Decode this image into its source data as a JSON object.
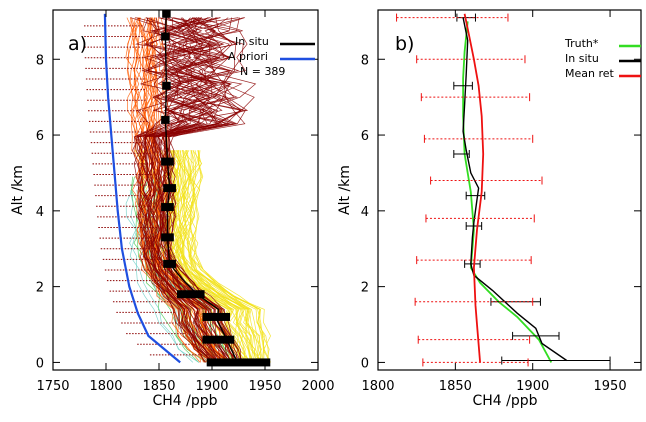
{
  "chart_data": [
    {
      "type": "line",
      "panel_label": "a)",
      "xlabel": "CH4 /ppb",
      "ylabel": "Alt /km",
      "xlim": [
        1750,
        2000
      ],
      "ylim": [
        -0.2,
        9.3
      ],
      "xticks": [
        1750,
        1800,
        1850,
        1900,
        1950,
        2000
      ],
      "yticks": [
        0,
        2,
        4,
        6,
        8
      ],
      "grid": false,
      "legend_position": "top-right",
      "legend": [
        {
          "name": "In situ",
          "color": "#000000"
        },
        {
          "name": "A priori",
          "color": "#1f4fe0"
        },
        {
          "name": "N = 389",
          "color": "none"
        }
      ],
      "colors": {
        "apriori": "#1f4fe0",
        "insitu": "#000000",
        "high": "#8b0000",
        "mid": "#ff5a00",
        "low": "#f2e21a",
        "green": "#48c850",
        "cyan": "#70d0c8"
      },
      "series": [
        {
          "name": "In situ",
          "points": [
            [
              1857,
              9.2
            ],
            [
              1856,
              8.6
            ],
            [
              1857,
              7.3
            ],
            [
              1856,
              6.4
            ],
            [
              1858,
              5.3
            ],
            [
              1860,
              4.6
            ],
            [
              1858,
              4.1
            ],
            [
              1858,
              3.3
            ],
            [
              1860,
              2.6
            ],
            [
              1872,
              2.2
            ],
            [
              1886,
              1.8
            ],
            [
              1906,
              1.4
            ],
            [
              1905,
              1.1
            ],
            [
              1914,
              0.6
            ],
            [
              1924,
              0
            ]
          ],
          "error_bars": [
            [
              1857,
              9.2,
              4
            ],
            [
              1856,
              8.6,
              4
            ],
            [
              1857,
              7.3,
              4
            ],
            [
              1856,
              6.4,
              4
            ],
            [
              1858,
              5.3,
              6
            ],
            [
              1860,
              4.6,
              6
            ],
            [
              1858,
              4.1,
              6
            ],
            [
              1858,
              3.3,
              6
            ],
            [
              1860,
              2.6,
              6
            ],
            [
              1880,
              1.8,
              13
            ],
            [
              1904,
              1.2,
              13
            ],
            [
              1906,
              0.6,
              15
            ],
            [
              1925,
              0,
              30
            ]
          ]
        },
        {
          "name": "A priori",
          "points": [
            [
              1799,
              9.2
            ],
            [
              1800,
              8.0
            ],
            [
              1802,
              7.0
            ],
            [
              1805,
              6.0
            ],
            [
              1808,
              5.0
            ],
            [
              1811,
              4.0
            ],
            [
              1815,
              3.0
            ],
            [
              1822,
              2.0
            ],
            [
              1830,
              1.3
            ],
            [
              1840,
              0.7
            ],
            [
              1870,
              0
            ]
          ]
        }
      ]
    },
    {
      "type": "line",
      "panel_label": "b)",
      "xlabel": "CH4 /ppb",
      "ylabel": "Alt /km",
      "xlim": [
        1800,
        1970
      ],
      "ylim": [
        -0.2,
        9.3
      ],
      "xticks": [
        1800,
        1850,
        1900,
        1950
      ],
      "yticks": [
        0,
        2,
        4,
        6,
        8
      ],
      "grid": false,
      "legend_position": "top-right",
      "legend": [
        {
          "name": "Truth*",
          "color": "#33dd22"
        },
        {
          "name": "In situ",
          "color": "#000000"
        },
        {
          "name": "Mean ret",
          "color": "#ee1111"
        }
      ],
      "series": [
        {
          "name": "Truth*",
          "points": [
            [
              1858,
              9.0
            ],
            [
              1856,
              8.2
            ],
            [
              1855,
              7.5
            ],
            [
              1855,
              6.5
            ],
            [
              1856,
              5.5
            ],
            [
              1860,
              4.5
            ],
            [
              1862,
              3.5
            ],
            [
              1861,
              3.0
            ],
            [
              1860,
              2.5
            ],
            [
              1866,
              2.1
            ],
            [
              1878,
              1.6
            ],
            [
              1890,
              1.2
            ],
            [
              1904,
              0.6
            ],
            [
              1912,
              0
            ]
          ]
        },
        {
          "name": "In situ",
          "points": [
            [
              1855,
              9.1
            ],
            [
              1858,
              8.5
            ],
            [
              1857,
              7.6
            ],
            [
              1856,
              6.8
            ],
            [
              1855,
              6.1
            ],
            [
              1857,
              5.6
            ],
            [
              1860,
              5.0
            ],
            [
              1865,
              4.6
            ],
            [
              1864,
              4.3
            ],
            [
              1862,
              3.7
            ],
            [
              1861,
              3.3
            ],
            [
              1860,
              2.6
            ],
            [
              1862,
              2.3
            ],
            [
              1874,
              1.9
            ],
            [
              1890,
              1.3
            ],
            [
              1902,
              0.9
            ],
            [
              1906,
              0.5
            ],
            [
              1922,
              0.05
            ]
          ],
          "error_bars": [
            [
              1857,
              9.1,
              6
            ],
            [
              1855,
              7.3,
              6
            ],
            [
              1854,
              5.5,
              5
            ],
            [
              1863,
              4.4,
              6
            ],
            [
              1862,
              3.6,
              5
            ],
            [
              1861,
              2.6,
              5
            ],
            [
              1889,
              1.6,
              16
            ],
            [
              1902,
              0.7,
              15
            ],
            [
              1915,
              0.05,
              35
            ]
          ]
        },
        {
          "name": "Mean ret",
          "points": [
            [
              1856,
              9.2
            ],
            [
              1859,
              8.6
            ],
            [
              1862,
              8.0
            ],
            [
              1865,
              7.3
            ],
            [
              1867,
              6.5
            ],
            [
              1868,
              5.5
            ],
            [
              1867,
              4.5
            ],
            [
              1864,
              3.5
            ],
            [
              1862,
              2.5
            ],
            [
              1863,
              1.5
            ],
            [
              1864,
              1.0
            ],
            [
              1866,
              0
            ]
          ],
          "error_bars": [
            [
              1848,
              9.1,
              36
            ],
            [
              1860,
              8.0,
              35
            ],
            [
              1863,
              7.0,
              35
            ],
            [
              1865,
              5.9,
              35
            ],
            [
              1870,
              4.8,
              36
            ],
            [
              1866,
              3.8,
              35
            ],
            [
              1862,
              2.7,
              37
            ],
            [
              1862,
              1.6,
              38
            ],
            [
              1862,
              0.6,
              36
            ],
            [
              1863,
              0.0,
              34
            ]
          ]
        }
      ]
    }
  ]
}
